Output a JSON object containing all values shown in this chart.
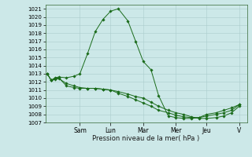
{
  "xlabel": "Pression niveau de la mer( hPa )",
  "bg_color": "#cce8e8",
  "grid_color": "#aacccc",
  "line_color": "#1a6b1a",
  "ylim": [
    1007,
    1021.5
  ],
  "yticks": [
    1007,
    1008,
    1009,
    1010,
    1011,
    1012,
    1013,
    1014,
    1015,
    1016,
    1017,
    1018,
    1019,
    1020,
    1021
  ],
  "xtick_positions": [
    0.17,
    0.33,
    0.5,
    0.67,
    0.83,
    1.0
  ],
  "day_labels": [
    "Sam",
    "Lun",
    "Mar",
    "Mer",
    "Jeu",
    "V"
  ],
  "series": [
    {
      "x": [
        0.0,
        0.02,
        0.04,
        0.06,
        0.1,
        0.14,
        0.17,
        0.21,
        0.25,
        0.29,
        0.33,
        0.37,
        0.42,
        0.46,
        0.5,
        0.54,
        0.58,
        0.63,
        0.67,
        0.71,
        0.75,
        0.79,
        0.83,
        0.88,
        0.92,
        0.96,
        1.0
      ],
      "y": [
        1013.0,
        1012.2,
        1012.5,
        1012.6,
        1012.5,
        1012.7,
        1013.0,
        1015.5,
        1018.2,
        1019.7,
        1020.7,
        1021.0,
        1019.5,
        1017.0,
        1014.5,
        1013.5,
        1010.3,
        1007.8,
        1007.6,
        1007.5,
        1007.5,
        1007.6,
        1008.0,
        1008.2,
        1008.5,
        1008.8,
        1009.2
      ]
    },
    {
      "x": [
        0.0,
        0.02,
        0.04,
        0.06,
        0.1,
        0.14,
        0.17,
        0.21,
        0.25,
        0.29,
        0.33,
        0.37,
        0.42,
        0.46,
        0.5,
        0.54,
        0.58,
        0.63,
        0.67,
        0.71,
        0.75,
        0.79,
        0.83,
        0.88,
        0.92,
        0.96,
        1.0
      ],
      "y": [
        1013.0,
        1012.2,
        1012.4,
        1012.5,
        1011.5,
        1011.3,
        1011.2,
        1011.2,
        1011.2,
        1011.1,
        1011.0,
        1010.8,
        1010.5,
        1010.2,
        1010.0,
        1009.5,
        1009.0,
        1008.5,
        1008.2,
        1008.0,
        1007.7,
        1007.5,
        1007.5,
        1007.6,
        1007.8,
        1008.2,
        1009.0
      ]
    },
    {
      "x": [
        0.0,
        0.02,
        0.04,
        0.06,
        0.1,
        0.14,
        0.17,
        0.21,
        0.25,
        0.29,
        0.33,
        0.37,
        0.42,
        0.46,
        0.5,
        0.54,
        0.58,
        0.63,
        0.67,
        0.71,
        0.75,
        0.79,
        0.83,
        0.88,
        0.92,
        0.96,
        1.0
      ],
      "y": [
        1013.0,
        1012.2,
        1012.3,
        1012.4,
        1011.8,
        1011.5,
        1011.3,
        1011.2,
        1011.2,
        1011.1,
        1011.0,
        1010.6,
        1010.2,
        1009.8,
        1009.4,
        1009.0,
        1008.5,
        1008.2,
        1007.9,
        1007.7,
        1007.6,
        1007.6,
        1007.8,
        1008.0,
        1008.2,
        1008.5,
        1009.2
      ]
    }
  ],
  "figsize": [
    3.2,
    2.0
  ],
  "dpi": 100
}
